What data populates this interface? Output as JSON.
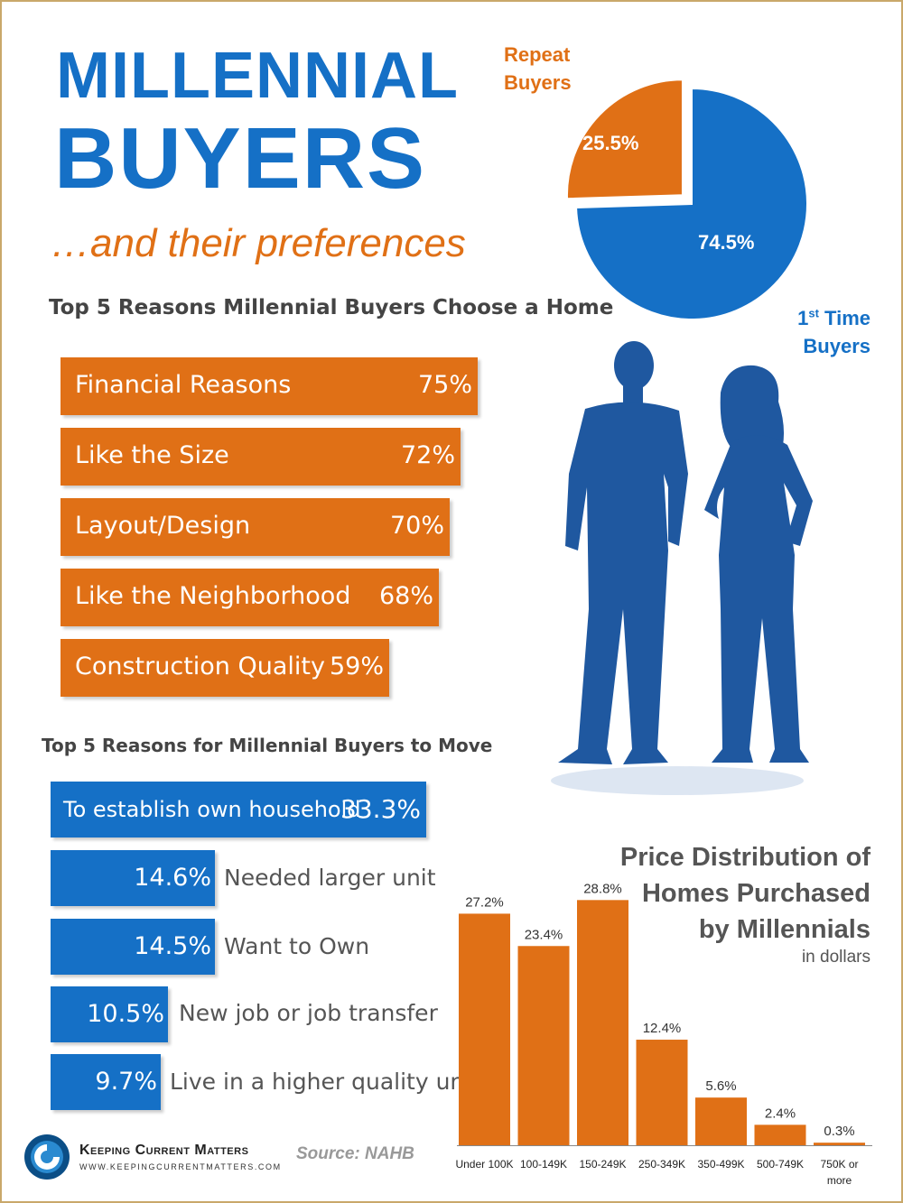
{
  "header": {
    "title_line1": "MILLENNIAL",
    "title_line2": "BUYERS",
    "subtitle": "…and their preferences"
  },
  "pie": {
    "repeat_label_1": "Repeat",
    "repeat_label_2": "Buyers",
    "repeat_value": "25.5%",
    "first_value": "74.5%",
    "first_label_pre": "1",
    "first_label_sup": "st",
    "first_label_post": " Time",
    "first_label_2": "Buyers"
  },
  "choose": {
    "title": "Top 5 Reasons Millennial Buyers Choose a Home",
    "items": [
      {
        "label": "Financial Reasons",
        "value": "75%"
      },
      {
        "label": "Like the Size",
        "value": "72%"
      },
      {
        "label": "Layout/Design",
        "value": "70%"
      },
      {
        "label": "Like the Neighborhood",
        "value": "68%"
      },
      {
        "label": "Construction Quality",
        "value": "59%"
      }
    ]
  },
  "move": {
    "title": "Top 5 Reasons for Millennial Buyers to Move",
    "items": [
      {
        "label": "To establish own household",
        "value": "33.3%"
      },
      {
        "label": "Needed larger unit",
        "value": "14.6%"
      },
      {
        "label": "Want to Own",
        "value": "14.5%"
      },
      {
        "label": "New job or job transfer",
        "value": "10.5%"
      },
      {
        "label": "Live in a higher quality unit",
        "value": "9.7%"
      }
    ]
  },
  "price": {
    "title_1": "Price Distribution of",
    "title_2": "Homes Purchased",
    "title_3": "by Millennials",
    "subtitle": "in dollars"
  },
  "footer": {
    "brand": "Keeping Current Matters",
    "url": "WWW.KEEPINGCURRENTMATTERS.COM",
    "source": "Source: NAHB"
  },
  "colors": {
    "orange": "#e07016",
    "blue": "#1570c6",
    "silhouette": "#1f58a0"
  },
  "chart_data": [
    {
      "type": "pie",
      "categories": [
        "Repeat Buyers",
        "1st Time Buyers"
      ],
      "values": [
        25.5,
        74.5
      ]
    },
    {
      "type": "bar",
      "orientation": "horizontal",
      "title": "Top 5 Reasons Millennial Buyers Choose a Home",
      "categories": [
        "Financial Reasons",
        "Like the Size",
        "Layout/Design",
        "Like the Neighborhood",
        "Construction Quality"
      ],
      "values": [
        75,
        72,
        70,
        68,
        59
      ]
    },
    {
      "type": "bar",
      "orientation": "horizontal",
      "title": "Top 5 Reasons for Millennial Buyers to Move",
      "categories": [
        "To establish own household",
        "Needed larger unit",
        "Want to Own",
        "New job or job transfer",
        "Live in a higher quality unit"
      ],
      "values": [
        33.3,
        14.6,
        14.5,
        10.5,
        9.7
      ]
    },
    {
      "type": "bar",
      "title": "Price Distribution of Homes Purchased by Millennials",
      "subtitle": "in dollars",
      "categories": [
        "Under 100K",
        "100-149K",
        "150-249K",
        "250-349K",
        "350-499K",
        "500-749K",
        "750K or more"
      ],
      "values": [
        27.2,
        23.4,
        28.8,
        12.4,
        5.6,
        2.4,
        0.3
      ],
      "value_labels": [
        "27.2%",
        "23.4%",
        "28.8%",
        "12.4%",
        "5.6%",
        "2.4%",
        "0.3%"
      ],
      "ylim": [
        0,
        30
      ]
    }
  ]
}
